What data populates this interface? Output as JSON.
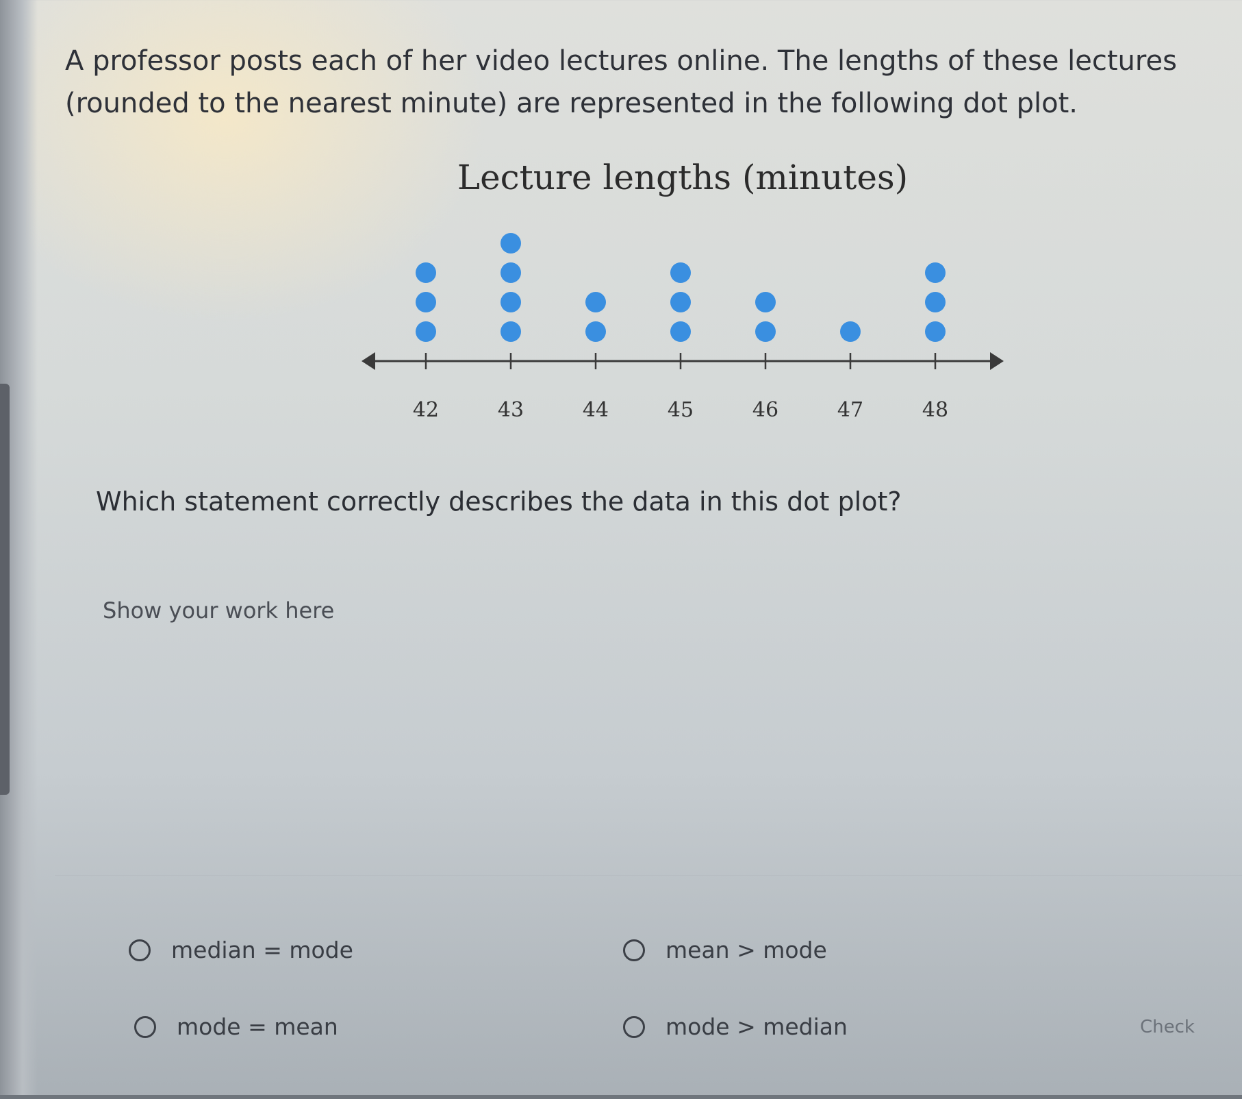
{
  "question": {
    "intro_lines": [
      "A professor posts each of her video lectures online. The lengths of these lectures",
      "(rounded to the nearest minute) are represented in the following dot plot."
    ],
    "prompt": "Which statement correctly describes the data in this dot plot?",
    "work_area_label": "Show your work here"
  },
  "chart_data": {
    "type": "scatter",
    "subtype": "dot plot",
    "title": "Lecture lengths (minutes)",
    "categories": [
      42,
      43,
      44,
      45,
      46,
      47,
      48
    ],
    "tick_labels": [
      "42",
      "43",
      "44",
      "45",
      "46",
      "47",
      "48"
    ],
    "counts": [
      3,
      4,
      2,
      3,
      2,
      1,
      3
    ],
    "dot_color": "#3a8fe0",
    "axis_arrows": true,
    "grid": false
  },
  "options": [
    {
      "label": "median = mode",
      "selected": false
    },
    {
      "label": "mean > mode",
      "selected": false
    },
    {
      "label": "mode = mean",
      "selected": false
    },
    {
      "label": "mode > median",
      "selected": false
    }
  ],
  "check_label": "Check"
}
